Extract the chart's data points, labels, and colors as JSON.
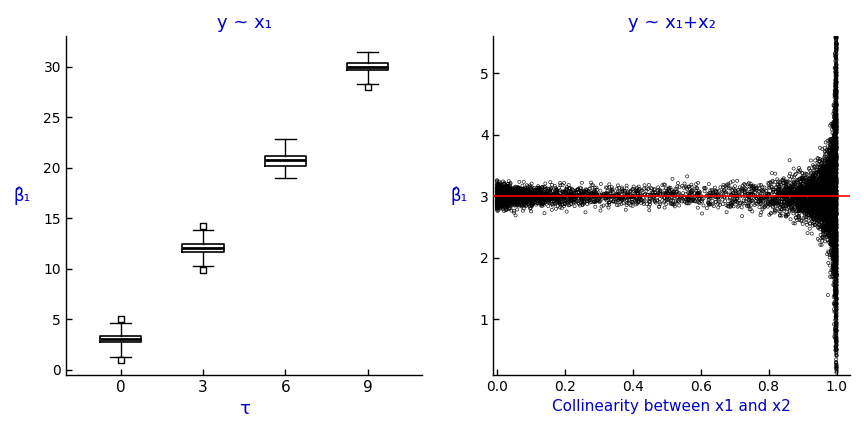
{
  "left_title": "y ~ x₁",
  "right_title": "y ~ x₁+x₂",
  "left_xlabel": "τ",
  "left_ylabel": "β̂₁",
  "right_xlabel": "Collinearity between x1 and x2",
  "right_ylabel": "β̂₁",
  "tau_values": [
    0,
    3,
    6,
    9
  ],
  "box_data": {
    "0": {
      "median": 3.0,
      "q1": 2.7,
      "q3": 3.3,
      "whislo": 1.3,
      "whishi": 4.6,
      "fliers": [
        1.0,
        5.0
      ]
    },
    "3": {
      "median": 12.0,
      "q1": 11.6,
      "q3": 12.4,
      "whislo": 10.3,
      "whishi": 13.8,
      "fliers": [
        9.9,
        14.2
      ]
    },
    "6": {
      "median": 20.7,
      "q1": 20.2,
      "q3": 21.1,
      "whislo": 19.0,
      "whishi": 22.8,
      "fliers": []
    },
    "9": {
      "median": 30.0,
      "q1": 29.7,
      "q3": 30.35,
      "whislo": 28.3,
      "whishi": 31.4,
      "fliers": [
        28.0
      ]
    }
  },
  "left_ylim": [
    -0.5,
    33
  ],
  "left_yticks": [
    0,
    5,
    10,
    15,
    20,
    25,
    30
  ],
  "right_ylim": [
    0.1,
    5.6
  ],
  "right_yticks": [
    1,
    2,
    3,
    4,
    5
  ],
  "right_xlim": [
    -0.01,
    1.04
  ],
  "right_xticks": [
    0.0,
    0.2,
    0.4,
    0.6,
    0.8,
    1.0
  ],
  "true_beta": 3.0,
  "red_line_color": "#FF0000",
  "title_color": "#0000CC",
  "axis_label_color": "#0000CC",
  "tick_color": "#CC6600",
  "background_color": "#FFFFFF",
  "n_scatter_points": 8000,
  "scatter_seed": 7
}
